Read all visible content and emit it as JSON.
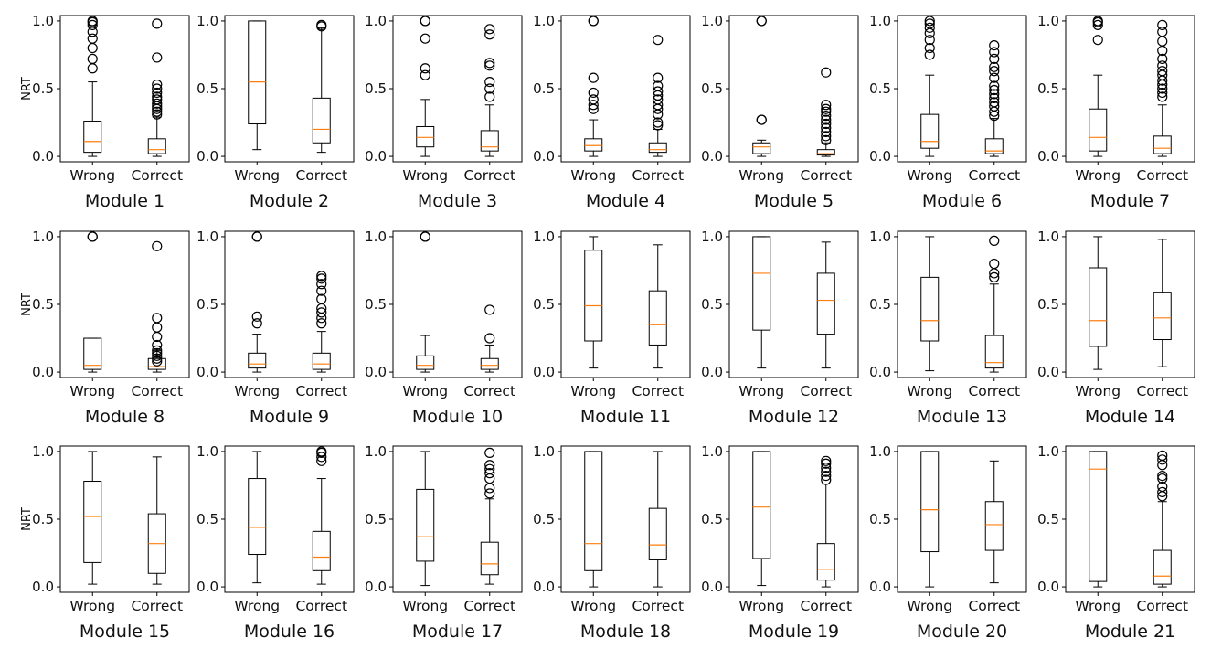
{
  "chart_data": {
    "type": "boxplot",
    "ylabel": "NRT",
    "ylim": [
      -0.04,
      1.04
    ],
    "yticks": [
      0.0,
      0.5,
      1.0
    ],
    "ytick_labels": [
      "0.0",
      "0.5",
      "1.0"
    ],
    "categories": [
      "Wrong",
      "Correct"
    ],
    "colors": {
      "median": "#ff7f0e",
      "box": "#000000",
      "axes": "#000000"
    },
    "panels": [
      {
        "title": "Module 1",
        "boxes": [
          {
            "category": "Wrong",
            "whislo": 0.0,
            "q1": 0.03,
            "med": 0.11,
            "q3": 0.26,
            "whishi": 0.55,
            "fliers": [
              0.65,
              0.72,
              0.8,
              0.87,
              0.92,
              0.97,
              0.99,
              1.0
            ]
          },
          {
            "category": "Correct",
            "whislo": 0.0,
            "q1": 0.02,
            "med": 0.05,
            "q3": 0.13,
            "whishi": 0.29,
            "fliers": [
              0.31,
              0.33,
              0.35,
              0.37,
              0.39,
              0.42,
              0.44,
              0.47,
              0.5,
              0.53,
              0.73,
              0.98
            ]
          }
        ]
      },
      {
        "title": "Module 2",
        "boxes": [
          {
            "category": "Wrong",
            "whislo": 0.05,
            "q1": 0.24,
            "med": 0.55,
            "q3": 1.0,
            "whishi": 1.0,
            "fliers": []
          },
          {
            "category": "Correct",
            "whislo": 0.03,
            "q1": 0.1,
            "med": 0.2,
            "q3": 0.43,
            "whishi": 0.95,
            "fliers": [
              0.96,
              0.97
            ]
          }
        ]
      },
      {
        "title": "Module 3",
        "boxes": [
          {
            "category": "Wrong",
            "whislo": 0.0,
            "q1": 0.07,
            "med": 0.14,
            "q3": 0.22,
            "whishi": 0.42,
            "fliers": [
              0.6,
              0.65,
              0.87,
              1.0,
              1.0
            ]
          },
          {
            "category": "Correct",
            "whislo": 0.0,
            "q1": 0.04,
            "med": 0.07,
            "q3": 0.19,
            "whishi": 0.38,
            "fliers": [
              0.44,
              0.5,
              0.55,
              0.67,
              0.69,
              0.9,
              0.94
            ]
          }
        ]
      },
      {
        "title": "Module 4",
        "boxes": [
          {
            "category": "Wrong",
            "whislo": 0.0,
            "q1": 0.04,
            "med": 0.08,
            "q3": 0.13,
            "whishi": 0.27,
            "fliers": [
              0.35,
              0.38,
              0.42,
              0.47,
              0.58,
              1.0,
              1.0
            ]
          },
          {
            "category": "Correct",
            "whislo": 0.0,
            "q1": 0.03,
            "med": 0.05,
            "q3": 0.1,
            "whishi": 0.2,
            "fliers": [
              0.23,
              0.25,
              0.31,
              0.35,
              0.38,
              0.42,
              0.45,
              0.48,
              0.52,
              0.58,
              0.86
            ]
          }
        ]
      },
      {
        "title": "Module 5",
        "boxes": [
          {
            "category": "Wrong",
            "whislo": 0.0,
            "q1": 0.02,
            "med": 0.07,
            "q3": 0.1,
            "whishi": 0.12,
            "fliers": [
              0.27,
              0.27,
              1.0,
              1.0
            ]
          },
          {
            "category": "Correct",
            "whislo": 0.0,
            "q1": 0.01,
            "med": 0.02,
            "q3": 0.05,
            "whishi": 0.1,
            "fliers": [
              0.12,
              0.15,
              0.18,
              0.21,
              0.24,
              0.27,
              0.3,
              0.33,
              0.35,
              0.38,
              0.62
            ]
          }
        ]
      },
      {
        "title": "Module 6",
        "boxes": [
          {
            "category": "Wrong",
            "whislo": 0.0,
            "q1": 0.06,
            "med": 0.11,
            "q3": 0.31,
            "whishi": 0.6,
            "fliers": [
              0.75,
              0.8,
              0.86,
              0.91,
              0.95,
              0.98,
              1.0
            ]
          },
          {
            "category": "Correct",
            "whislo": 0.0,
            "q1": 0.02,
            "med": 0.04,
            "q3": 0.13,
            "whishi": 0.28,
            "fliers": [
              0.3,
              0.33,
              0.37,
              0.4,
              0.43,
              0.46,
              0.49,
              0.52,
              0.58,
              0.63,
              0.66,
              0.72,
              0.77,
              0.82
            ]
          }
        ]
      },
      {
        "title": "Module 7",
        "boxes": [
          {
            "category": "Wrong",
            "whislo": 0.0,
            "q1": 0.04,
            "med": 0.14,
            "q3": 0.35,
            "whishi": 0.6,
            "fliers": [
              0.86,
              0.97,
              0.99,
              1.0
            ]
          },
          {
            "category": "Correct",
            "whislo": 0.0,
            "q1": 0.02,
            "med": 0.06,
            "q3": 0.15,
            "whishi": 0.38,
            "fliers": [
              0.44,
              0.47,
              0.5,
              0.53,
              0.56,
              0.6,
              0.63,
              0.67,
              0.72,
              0.78,
              0.85,
              0.92,
              0.97
            ]
          }
        ]
      },
      {
        "title": "Module 8",
        "boxes": [
          {
            "category": "Wrong",
            "whislo": 0.0,
            "q1": 0.02,
            "med": 0.05,
            "q3": 0.25,
            "whishi": 0.25,
            "fliers": [
              1.0,
              1.0
            ]
          },
          {
            "category": "Correct",
            "whislo": 0.0,
            "q1": 0.02,
            "med": 0.04,
            "q3": 0.1,
            "whishi": 0.16,
            "fliers": [
              0.08,
              0.1,
              0.12,
              0.14,
              0.16,
              0.2,
              0.26,
              0.33,
              0.4,
              0.93
            ]
          }
        ]
      },
      {
        "title": "Module 9",
        "boxes": [
          {
            "category": "Wrong",
            "whislo": 0.0,
            "q1": 0.03,
            "med": 0.06,
            "q3": 0.14,
            "whishi": 0.28,
            "fliers": [
              0.36,
              0.41,
              1.0,
              1.0
            ]
          },
          {
            "category": "Correct",
            "whislo": 0.0,
            "q1": 0.02,
            "med": 0.06,
            "q3": 0.14,
            "whishi": 0.3,
            "fliers": [
              0.36,
              0.4,
              0.44,
              0.47,
              0.54,
              0.6,
              0.65,
              0.69,
              0.71
            ]
          }
        ]
      },
      {
        "title": "Module 10",
        "boxes": [
          {
            "category": "Wrong",
            "whislo": 0.0,
            "q1": 0.02,
            "med": 0.05,
            "q3": 0.12,
            "whishi": 0.27,
            "fliers": [
              1.0,
              1.0
            ]
          },
          {
            "category": "Correct",
            "whislo": 0.0,
            "q1": 0.02,
            "med": 0.05,
            "q3": 0.1,
            "whishi": 0.2,
            "fliers": [
              0.25,
              0.46
            ]
          }
        ]
      },
      {
        "title": "Module 11",
        "boxes": [
          {
            "category": "Wrong",
            "whislo": 0.03,
            "q1": 0.23,
            "med": 0.49,
            "q3": 0.9,
            "whishi": 1.0,
            "fliers": []
          },
          {
            "category": "Correct",
            "whislo": 0.03,
            "q1": 0.2,
            "med": 0.35,
            "q3": 0.6,
            "whishi": 0.94,
            "fliers": []
          }
        ]
      },
      {
        "title": "Module 12",
        "boxes": [
          {
            "category": "Wrong",
            "whislo": 0.03,
            "q1": 0.31,
            "med": 0.73,
            "q3": 1.0,
            "whishi": 1.0,
            "fliers": []
          },
          {
            "category": "Correct",
            "whislo": 0.03,
            "q1": 0.28,
            "med": 0.53,
            "q3": 0.73,
            "whishi": 0.96,
            "fliers": []
          }
        ]
      },
      {
        "title": "Module 13",
        "boxes": [
          {
            "category": "Wrong",
            "whislo": 0.01,
            "q1": 0.23,
            "med": 0.38,
            "q3": 0.7,
            "whishi": 1.0,
            "fliers": []
          },
          {
            "category": "Correct",
            "whislo": 0.0,
            "q1": 0.03,
            "med": 0.07,
            "q3": 0.27,
            "whishi": 0.65,
            "fliers": [
              0.7,
              0.73,
              0.8,
              0.97
            ]
          }
        ]
      },
      {
        "title": "Module 14",
        "boxes": [
          {
            "category": "Wrong",
            "whislo": 0.02,
            "q1": 0.19,
            "med": 0.38,
            "q3": 0.77,
            "whishi": 1.0,
            "fliers": []
          },
          {
            "category": "Correct",
            "whislo": 0.04,
            "q1": 0.24,
            "med": 0.4,
            "q3": 0.59,
            "whishi": 0.98,
            "fliers": []
          }
        ]
      },
      {
        "title": "Module 15",
        "boxes": [
          {
            "category": "Wrong",
            "whislo": 0.02,
            "q1": 0.18,
            "med": 0.52,
            "q3": 0.78,
            "whishi": 1.0,
            "fliers": []
          },
          {
            "category": "Correct",
            "whislo": 0.02,
            "q1": 0.1,
            "med": 0.32,
            "q3": 0.54,
            "whishi": 0.96,
            "fliers": []
          }
        ]
      },
      {
        "title": "Module 16",
        "boxes": [
          {
            "category": "Wrong",
            "whislo": 0.03,
            "q1": 0.24,
            "med": 0.44,
            "q3": 0.8,
            "whishi": 1.0,
            "fliers": []
          },
          {
            "category": "Correct",
            "whislo": 0.02,
            "q1": 0.12,
            "med": 0.22,
            "q3": 0.41,
            "whishi": 0.8,
            "fliers": [
              0.93,
              0.96,
              0.99,
              1.0
            ]
          }
        ]
      },
      {
        "title": "Module 17",
        "boxes": [
          {
            "category": "Wrong",
            "whislo": 0.01,
            "q1": 0.19,
            "med": 0.37,
            "q3": 0.72,
            "whishi": 1.0,
            "fliers": []
          },
          {
            "category": "Correct",
            "whislo": 0.02,
            "q1": 0.09,
            "med": 0.17,
            "q3": 0.33,
            "whishi": 0.65,
            "fliers": [
              0.69,
              0.73,
              0.8,
              0.84,
              0.87,
              0.9,
              0.99
            ]
          }
        ]
      },
      {
        "title": "Module 18",
        "boxes": [
          {
            "category": "Wrong",
            "whislo": 0.0,
            "q1": 0.12,
            "med": 0.32,
            "q3": 1.0,
            "whishi": 1.0,
            "fliers": []
          },
          {
            "category": "Correct",
            "whislo": 0.0,
            "q1": 0.2,
            "med": 0.31,
            "q3": 0.58,
            "whishi": 1.0,
            "fliers": []
          }
        ]
      },
      {
        "title": "Module 19",
        "boxes": [
          {
            "category": "Wrong",
            "whislo": 0.01,
            "q1": 0.21,
            "med": 0.59,
            "q3": 1.0,
            "whishi": 1.0,
            "fliers": []
          },
          {
            "category": "Correct",
            "whislo": 0.0,
            "q1": 0.05,
            "med": 0.13,
            "q3": 0.32,
            "whishi": 0.76,
            "fliers": [
              0.79,
              0.82,
              0.85,
              0.88,
              0.91,
              0.93
            ]
          }
        ]
      },
      {
        "title": "Module 20",
        "boxes": [
          {
            "category": "Wrong",
            "whislo": 0.0,
            "q1": 0.26,
            "med": 0.57,
            "q3": 1.0,
            "whishi": 1.0,
            "fliers": []
          },
          {
            "category": "Correct",
            "whislo": 0.03,
            "q1": 0.27,
            "med": 0.46,
            "q3": 0.63,
            "whishi": 0.93,
            "fliers": []
          }
        ]
      },
      {
        "title": "Module 21",
        "boxes": [
          {
            "category": "Wrong",
            "whislo": 0.0,
            "q1": 0.04,
            "med": 0.87,
            "q3": 1.0,
            "whishi": 1.0,
            "fliers": []
          },
          {
            "category": "Correct",
            "whislo": 0.0,
            "q1": 0.02,
            "med": 0.08,
            "q3": 0.27,
            "whishi": 0.63,
            "fliers": [
              0.67,
              0.7,
              0.74,
              0.8,
              0.82,
              0.9,
              0.94,
              0.97
            ]
          }
        ]
      }
    ]
  }
}
